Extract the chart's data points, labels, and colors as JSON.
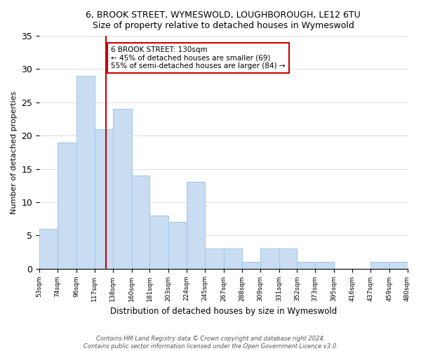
{
  "title": "6, BROOK STREET, WYMESWOLD, LOUGHBOROUGH, LE12 6TU",
  "subtitle": "Size of property relative to detached houses in Wymeswold",
  "xlabel": "Distribution of detached houses by size in Wymeswold",
  "ylabel": "Number of detached properties",
  "bins": [
    53,
    74,
    96,
    117,
    138,
    160,
    181,
    203,
    224,
    245,
    267,
    288,
    309,
    331,
    352,
    373,
    395,
    416,
    437,
    459,
    480
  ],
  "counts": [
    6,
    19,
    29,
    21,
    24,
    14,
    8,
    7,
    13,
    3,
    3,
    1,
    3,
    3,
    1,
    1,
    0,
    0,
    1,
    1
  ],
  "bar_color": "#c8ddf2",
  "bar_edge_color": "#a8c8e8",
  "vline_x": 130,
  "vline_color": "#cc0000",
  "annotation_title": "6 BROOK STREET: 130sqm",
  "annotation_line1": "← 45% of detached houses are smaller (69)",
  "annotation_line2": "55% of semi-detached houses are larger (84) →",
  "annotation_border_color": "#cc0000",
  "ylim": [
    0,
    35
  ],
  "yticks": [
    0,
    5,
    10,
    15,
    20,
    25,
    30,
    35
  ],
  "tick_labels": [
    "53sqm",
    "74sqm",
    "96sqm",
    "117sqm",
    "138sqm",
    "160sqm",
    "181sqm",
    "203sqm",
    "224sqm",
    "245sqm",
    "267sqm",
    "288sqm",
    "309sqm",
    "331sqm",
    "352sqm",
    "373sqm",
    "395sqm",
    "416sqm",
    "437sqm",
    "459sqm",
    "480sqm"
  ],
  "footer1": "Contains HM Land Registry data © Crown copyright and database right 2024.",
  "footer2": "Contains public sector information licensed under the Open Government Licence v3.0."
}
